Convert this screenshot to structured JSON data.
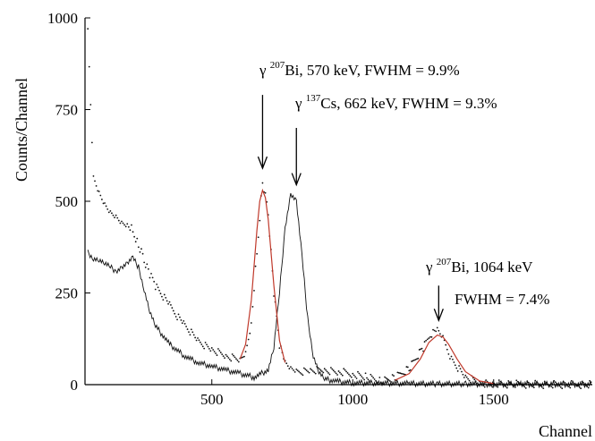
{
  "chart_data": {
    "type": "scatter",
    "xlabel": "Channel",
    "ylabel": "Counts/Channel",
    "xlim": [
      50,
      1850
    ],
    "ylim": [
      0,
      1000
    ],
    "x_ticks": [
      500,
      1000,
      1500
    ],
    "y_ticks": [
      0,
      250,
      500,
      750,
      1000
    ],
    "grid": false,
    "series": [
      {
        "style": "dots",
        "x": [
          60,
          80,
          100,
          120,
          140,
          160,
          180,
          200,
          220,
          240,
          260,
          280,
          300,
          350,
          400,
          450,
          500,
          550,
          600,
          620,
          640,
          660,
          680,
          700,
          720,
          740,
          760,
          780,
          800,
          850,
          900,
          950,
          1000,
          1050,
          1100,
          1150,
          1200,
          1250,
          1280,
          1300,
          1320,
          1350,
          1400,
          1450,
          1500,
          1600,
          1700,
          1800,
          1850
        ],
        "y": [
          960,
          560,
          520,
          490,
          470,
          460,
          445,
          440,
          420,
          380,
          340,
          300,
          270,
          215,
          165,
          120,
          95,
          78,
          70,
          90,
          170,
          360,
          555,
          470,
          250,
          110,
          55,
          40,
          35,
          38,
          40,
          35,
          30,
          20,
          10,
          18,
          45,
          100,
          140,
          145,
          125,
          70,
          20,
          5,
          2,
          1,
          0,
          0,
          0
        ]
      },
      {
        "style": "line",
        "x": [
          60,
          80,
          100,
          120,
          140,
          160,
          180,
          200,
          220,
          240,
          260,
          280,
          300,
          350,
          400,
          450,
          500,
          550,
          600,
          650,
          700,
          720,
          740,
          760,
          780,
          800,
          820,
          840,
          860,
          880,
          900,
          950,
          1000,
          1100,
          1200,
          1300,
          1400,
          1500,
          1600,
          1700,
          1850
        ],
        "y": [
          360,
          345,
          340,
          330,
          320,
          310,
          320,
          330,
          345,
          320,
          260,
          200,
          160,
          110,
          80,
          60,
          50,
          40,
          30,
          20,
          40,
          100,
          250,
          430,
          520,
          500,
          350,
          180,
          80,
          35,
          15,
          8,
          5,
          4,
          3,
          2,
          2,
          1,
          1,
          1,
          1
        ]
      },
      {
        "style": "fit",
        "color": "#c0392b",
        "x": [
          600,
          620,
          640,
          660,
          670,
          680,
          690,
          700,
          720,
          740,
          760
        ],
        "y": [
          70,
          110,
          230,
          420,
          500,
          530,
          510,
          450,
          270,
          120,
          60
        ]
      },
      {
        "style": "fit",
        "color": "#c0392b",
        "x": [
          1150,
          1200,
          1240,
          1270,
          1300,
          1320,
          1340,
          1370,
          1400,
          1450,
          1500
        ],
        "y": [
          12,
          30,
          70,
          115,
          135,
          130,
          110,
          70,
          35,
          10,
          3
        ]
      }
    ],
    "annotations": [
      {
        "id": "bi570",
        "greek": "γ",
        "mass": "207",
        "element": "Bi",
        "text": ", 570 keV, FWHM = 9.9%",
        "arrow_x": 680,
        "arrow_y_from": 790,
        "arrow_y_to": 590
      },
      {
        "id": "cs662",
        "greek": "γ",
        "mass": "137",
        "element": "Cs",
        "text": ", 662 keV, FWHM = 9.3%",
        "arrow_x": 800,
        "arrow_y_from": 700,
        "arrow_y_to": 545
      },
      {
        "id": "bi1064",
        "greek": "γ",
        "mass": "207",
        "element": "Bi",
        "text": ", 1064 keV",
        "line2": "FWHM = 7.4%",
        "arrow_x": 1305,
        "arrow_y_from": 270,
        "arrow_y_to": 175
      }
    ]
  }
}
